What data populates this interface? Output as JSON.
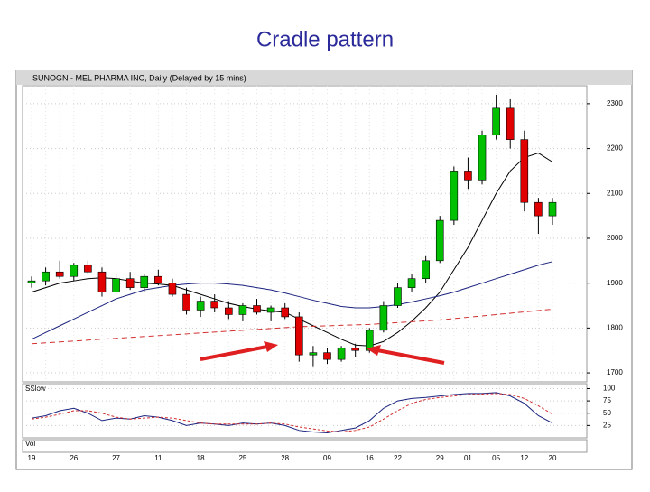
{
  "slide_title": "Cradle pattern",
  "chart_data": [
    {
      "type": "candlestick",
      "title": "SUNOGN - MEL PHARMA INC, Daily (Delayed by 15 mins)",
      "categories": [
        "19",
        null,
        null,
        "26",
        null,
        null,
        "27",
        null,
        null,
        "11",
        null,
        null,
        "18",
        null,
        null,
        "25",
        null,
        null,
        "28",
        null,
        null,
        "09",
        null,
        null,
        "16",
        null,
        "22",
        null,
        null,
        "29",
        null,
        "01",
        null,
        "05",
        null,
        "12",
        null,
        "20"
      ],
      "open": [
        1900,
        1905,
        1925,
        1915,
        1940,
        1925,
        1880,
        1910,
        1890,
        1915,
        1900,
        1875,
        1840,
        1860,
        1845,
        1830,
        1850,
        1835,
        1845,
        1825,
        1740,
        1745,
        1730,
        1755,
        1750,
        1795,
        1850,
        1890,
        1910,
        1950,
        2040,
        2150,
        2130,
        2230,
        2290,
        2220,
        2080,
        2050
      ],
      "high": [
        1915,
        1935,
        1950,
        1945,
        1950,
        1935,
        1920,
        1925,
        1920,
        1930,
        1910,
        1890,
        1870,
        1875,
        1860,
        1855,
        1865,
        1850,
        1855,
        1835,
        1760,
        1755,
        1760,
        1765,
        1800,
        1860,
        1900,
        1920,
        1960,
        2050,
        2160,
        2180,
        2240,
        2320,
        2310,
        2240,
        2090,
        2090
      ],
      "low": [
        1890,
        1895,
        1910,
        1905,
        1920,
        1870,
        1875,
        1885,
        1880,
        1895,
        1870,
        1830,
        1825,
        1835,
        1820,
        1815,
        1830,
        1815,
        1820,
        1725,
        1715,
        1720,
        1725,
        1735,
        1745,
        1790,
        1845,
        1880,
        1900,
        1945,
        2030,
        2110,
        2120,
        2220,
        2200,
        2060,
        2010,
        2030
      ],
      "close": [
        1905,
        1925,
        1915,
        1940,
        1925,
        1880,
        1910,
        1890,
        1915,
        1900,
        1875,
        1840,
        1860,
        1845,
        1830,
        1850,
        1835,
        1845,
        1825,
        1740,
        1745,
        1730,
        1755,
        1750,
        1795,
        1850,
        1890,
        1910,
        1950,
        2040,
        2150,
        2130,
        2230,
        2290,
        2220,
        2080,
        2050,
        2080
      ],
      "up_color": "#00c000",
      "down_color": "#e00000",
      "overlays": [
        {
          "color": "#000000",
          "values": [
            1880,
            1890,
            1900,
            1905,
            1910,
            1912,
            1910,
            1905,
            1900,
            1898,
            1895,
            1885,
            1875,
            1865,
            1855,
            1848,
            1842,
            1838,
            1835,
            1820,
            1805,
            1790,
            1775,
            1762,
            1760,
            1770,
            1790,
            1815,
            1845,
            1880,
            1930,
            1980,
            2040,
            2100,
            2150,
            2180,
            2190,
            2170
          ]
        },
        {
          "color": "#1a237e",
          "values": [
            1775,
            1790,
            1805,
            1820,
            1835,
            1850,
            1865,
            1875,
            1885,
            1890,
            1895,
            1898,
            1900,
            1900,
            1898,
            1895,
            1890,
            1885,
            1878,
            1870,
            1862,
            1855,
            1848,
            1845,
            1845,
            1848,
            1852,
            1858,
            1865,
            1872,
            1880,
            1890,
            1900,
            1910,
            1920,
            1930,
            1940,
            1948
          ]
        },
        {
          "color": "#d32f2f",
          "dashed": true,
          "values": [
            1765,
            1767,
            1769,
            1771,
            1773,
            1775,
            1777,
            1779,
            1781,
            1783,
            1785,
            1787,
            1789,
            1791,
            1793,
            1795,
            1797,
            1799,
            1801,
            1803,
            1804,
            1805,
            1806,
            1807,
            1808,
            1810,
            1812,
            1814,
            1816,
            1818,
            1821,
            1824,
            1827,
            1830,
            1833,
            1836,
            1839,
            1842
          ]
        }
      ],
      "ylim": [
        1680,
        2340
      ],
      "yticks": [
        1700,
        1800,
        1900,
        2000,
        2100,
        2200,
        2300
      ]
    },
    {
      "type": "line",
      "title": "SSlow",
      "series": [
        {
          "color": "#1a237e",
          "values": [
            40,
            45,
            55,
            60,
            50,
            35,
            40,
            38,
            45,
            42,
            35,
            25,
            30,
            28,
            25,
            30,
            28,
            30,
            25,
            15,
            12,
            10,
            15,
            20,
            35,
            60,
            75,
            80,
            82,
            85,
            88,
            90,
            90,
            92,
            85,
            70,
            45,
            30
          ]
        },
        {
          "color": "#d32f2f",
          "values": [
            38,
            42,
            48,
            55,
            55,
            50,
            42,
            38,
            40,
            42,
            40,
            35,
            30,
            28,
            28,
            28,
            28,
            30,
            28,
            22,
            18,
            14,
            12,
            15,
            22,
            38,
            55,
            70,
            78,
            82,
            85,
            88,
            89,
            90,
            88,
            80,
            65,
            48
          ]
        }
      ],
      "ylim": [
        0,
        110
      ],
      "yticks": [
        25,
        50,
        75,
        100
      ]
    }
  ],
  "volume_label": "Vol"
}
